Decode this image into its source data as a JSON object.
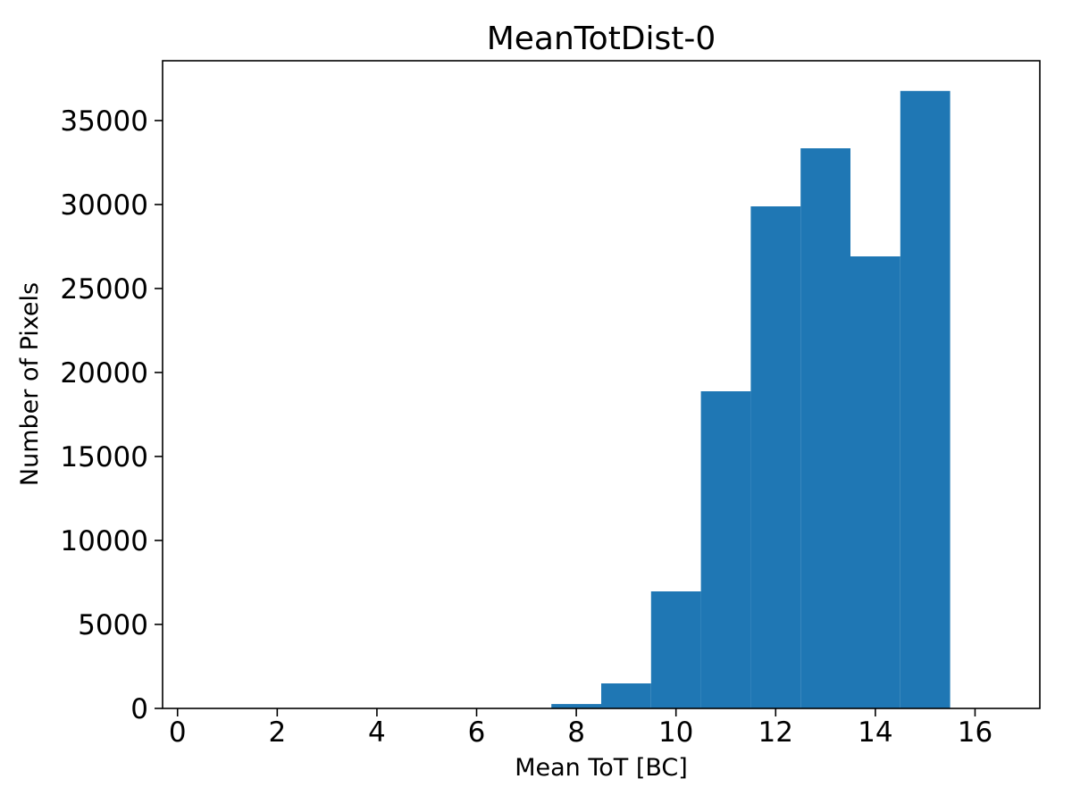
{
  "chart_data": {
    "type": "bar",
    "subtype": "histogram",
    "title": "MeanTotDist-0",
    "xlabel": "Mean ToT [BC]",
    "ylabel": "Number of Pixels",
    "bar_color": "#1f77b4",
    "grid": false,
    "bin_edges": [
      7.5,
      8.5,
      9.5,
      10.5,
      11.5,
      12.5,
      13.5,
      14.5,
      15.5
    ],
    "values": [
      260,
      1490,
      6970,
      18880,
      29890,
      33350,
      26910,
      36760
    ],
    "xlim": [
      -0.3,
      17.3
    ],
    "ylim": [
      0,
      38560
    ],
    "x_ticks": [
      0,
      2,
      4,
      6,
      8,
      10,
      12,
      14,
      16
    ],
    "y_ticks": [
      0,
      5000,
      10000,
      15000,
      20000,
      25000,
      30000,
      35000
    ]
  }
}
